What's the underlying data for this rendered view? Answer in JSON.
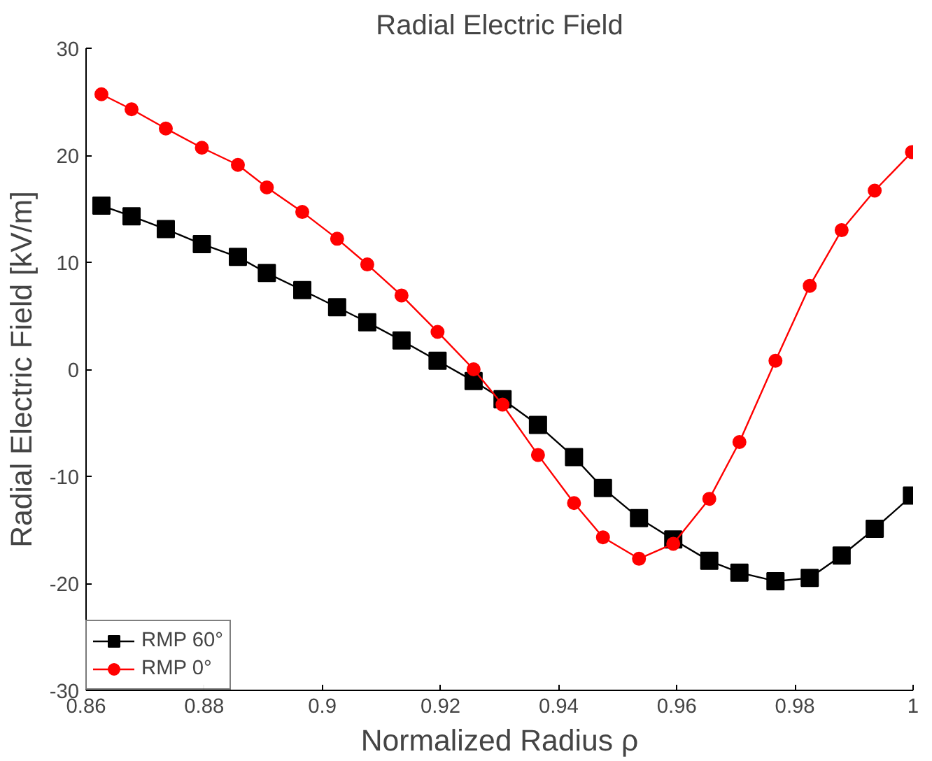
{
  "chart_data": {
    "type": "line",
    "title": "Radial Electric Field",
    "xlabel": "Normalized Radius ρ",
    "ylabel": "Radial Electric Field [kV/m]",
    "x": [
      0.8626,
      0.8677,
      0.8735,
      0.8796,
      0.8857,
      0.8906,
      0.8966,
      0.9025,
      0.9076,
      0.9134,
      0.9195,
      0.9256,
      0.9305,
      0.9365,
      0.9426,
      0.9475,
      0.9536,
      0.9594,
      0.9655,
      0.9706,
      0.9767,
      0.9825,
      0.9879,
      0.9935,
      0.9998
    ],
    "series": [
      {
        "name": "RMP 60°",
        "color": "#000000",
        "marker": "square",
        "values": [
          15.3,
          14.3,
          13.1,
          11.7,
          10.5,
          9.0,
          7.4,
          5.8,
          4.4,
          2.7,
          0.8,
          -1.1,
          -2.8,
          -5.2,
          -8.2,
          -11.1,
          -13.9,
          -15.9,
          -17.9,
          -19.0,
          -19.8,
          -19.5,
          -17.4,
          -14.9,
          -11.8
        ]
      },
      {
        "name": "RMP 0°",
        "color": "#ff0000",
        "marker": "circle",
        "values": [
          25.7,
          24.3,
          22.5,
          20.7,
          19.1,
          17.0,
          14.7,
          12.2,
          9.8,
          6.9,
          3.5,
          0.0,
          -3.3,
          -8.0,
          -12.5,
          -15.7,
          -17.7,
          -16.3,
          -12.1,
          -6.8,
          0.8,
          7.8,
          13.0,
          16.7,
          20.3
        ]
      }
    ],
    "xlim": [
      0.86,
      1.0
    ],
    "xticks": [
      0.86,
      0.88,
      0.9,
      0.92,
      0.94,
      0.96,
      0.98,
      1
    ],
    "ylim": [
      -30,
      30
    ],
    "yticks": [
      -30,
      -20,
      -10,
      0,
      10,
      20,
      30
    ],
    "legend": "bottom left",
    "line_style": "solid"
  }
}
